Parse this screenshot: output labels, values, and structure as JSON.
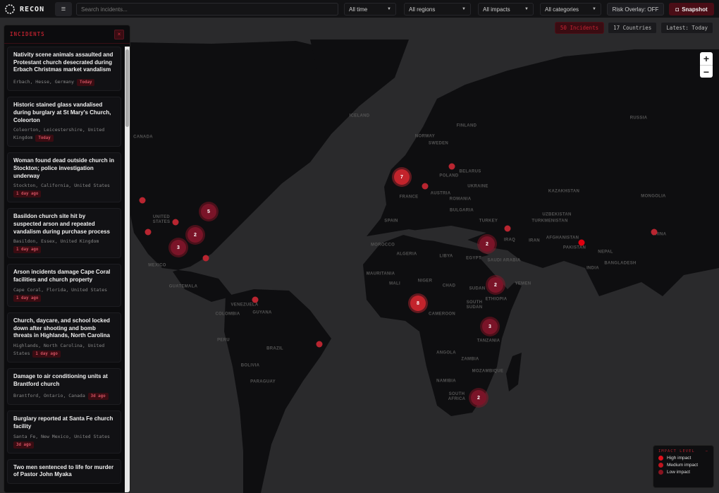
{
  "app": {
    "name": "RECON"
  },
  "toolbar": {
    "search_placeholder": "Search incidents...",
    "time": "All time",
    "regions": "All regions",
    "impacts": "All impacts",
    "categories": "All categories",
    "risk_overlay": "Risk Overlay: OFF",
    "snapshot": "Snapshot",
    "menu_icon": "hamburger-icon",
    "snapshot_icon": "camera-icon"
  },
  "stats": {
    "incidents": "50 Incidents",
    "countries": "17 Countries",
    "latest": "Latest: Today"
  },
  "sidebar": {
    "title": "INCIDENTS",
    "close": "×",
    "items": [
      {
        "title": "Nativity scene animals assaulted and Protestant church desecrated during Erbach Christmas market vandalism",
        "location": "Erbach, Hesse, Germany",
        "time": "Today"
      },
      {
        "title": "Historic stained glass vandalised during burglary at St Mary's Church, Coleorton",
        "location": "Coleorton, Leicestershire, United Kingdom",
        "time": "Today"
      },
      {
        "title": "Woman found dead outside church in Stockton; police investigation underway",
        "location": "Stockton, California, United States",
        "time": "1 day ago"
      },
      {
        "title": "Basildon church site hit by suspected arson and repeated vandalism during purchase process",
        "location": "Basildon, Essex, United Kingdom",
        "time": "1 day ago"
      },
      {
        "title": "Arson incidents damage Cape Coral facilities and church property",
        "location": "Cape Coral, Florida, United States",
        "time": "1 day ago"
      },
      {
        "title": "Church, daycare, and school locked down after shooting and bomb threats in Highlands, North Carolina",
        "location": "Highlands, North Carolina, United States",
        "time": "1 day ago"
      },
      {
        "title": "Damage to air conditioning units at Brantford church",
        "location": "Brantford, Ontario, Canada",
        "time": "3d ago"
      },
      {
        "title": "Burglary reported at Santa Fe church facility",
        "location": "Santa Fe, New Mexico, United States",
        "time": "3d ago"
      },
      {
        "title": "Two men sentenced to life for murder of Pastor John Myaka",
        "location": "",
        "time": ""
      }
    ]
  },
  "map": {
    "zoom_in": "+",
    "zoom_out": "−",
    "labels": [
      "CANADA",
      "UNITED STATES",
      "MEXICO",
      "GUATEMALA",
      "VENEZUELA",
      "COLOMBIA",
      "GUYANA",
      "PERU",
      "BRAZIL",
      "BOLIVIA",
      "PARAGUAY",
      "ICELAND",
      "NORWAY",
      "SWEDEN",
      "FINLAND",
      "POLAND",
      "BELARUS",
      "UKRAINE",
      "FRANCE",
      "AUSTRIA",
      "ROMANIA",
      "BULGARIA",
      "SPAIN",
      "TURKEY",
      "RUSSIA",
      "KAZAKHSTAN",
      "MONGOLIA",
      "UZBEKISTAN",
      "TURKMENISTAN",
      "AFGHANISTAN",
      "PAKISTAN",
      "IRAN",
      "IRAQ",
      "CHINA",
      "NEPAL",
      "INDIA",
      "BANGLADESH",
      "SAUDI ARABIA",
      "EGYPT",
      "LIBYA",
      "ALGERIA",
      "MOROCCO",
      "MAURITANIA",
      "MALI",
      "NIGER",
      "CHAD",
      "SUDAN",
      "ETHIOPIA",
      "SOUTH SUDAN",
      "CAMEROON",
      "TANZANIA",
      "ANGOLA",
      "ZAMBIA",
      "MOZAMBIQUE",
      "NAMIBIA",
      "SOUTH AFRICA",
      "YEMEN"
    ],
    "clusters": [
      "7",
      "5",
      "2",
      "3",
      "2",
      "8",
      "2",
      "3",
      "2"
    ]
  },
  "legend": {
    "title": "IMPACT LEVEL",
    "collapse": "−",
    "items": [
      {
        "label": "High impact",
        "color": "#e0101c"
      },
      {
        "label": "Medium impact",
        "color": "#c0141e"
      },
      {
        "label": "Low impact",
        "color": "#8a1420"
      }
    ]
  },
  "colors": {
    "accent": "#c3242c",
    "land": "#0e0e10",
    "water": "#2a2a2c"
  }
}
